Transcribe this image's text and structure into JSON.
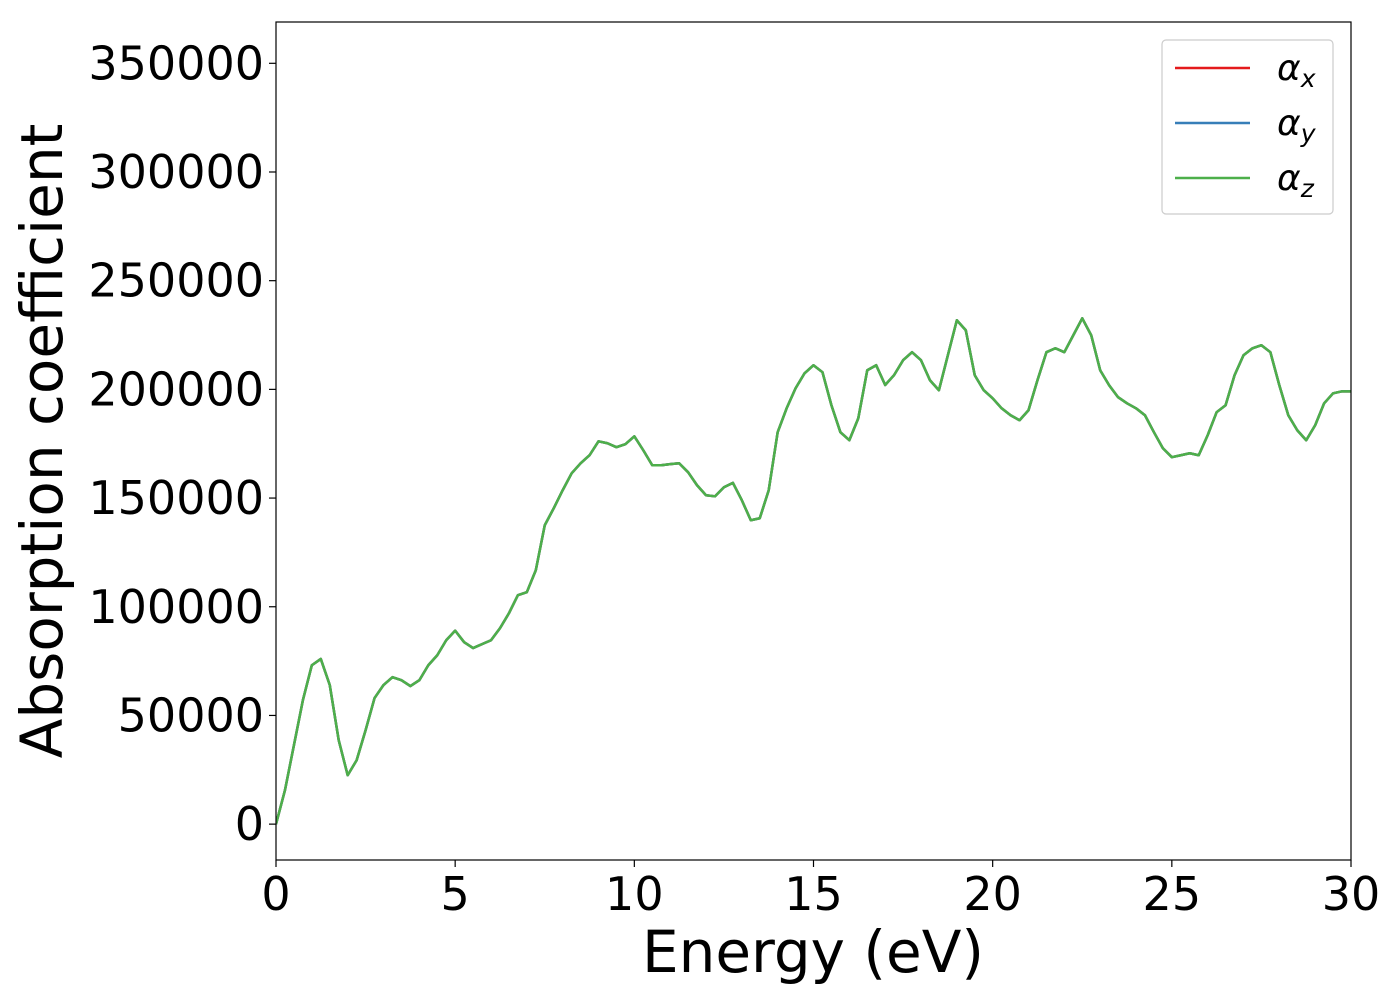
{
  "chart_data": {
    "type": "line",
    "xlabel": "Energy (eV)",
    "ylabel": "Absorption coefficient",
    "x": [
      0,
      0.25,
      0.5,
      0.75,
      1,
      1.25,
      1.5,
      1.75,
      2,
      2.25,
      2.5,
      2.75,
      3,
      3.25,
      3.5,
      3.75,
      4,
      4.25,
      4.5,
      4.75,
      5,
      5.25,
      5.5,
      5.75,
      6,
      6.25,
      6.5,
      6.75,
      7,
      7.25,
      7.5,
      7.75,
      8,
      8.25,
      8.5,
      8.75,
      9,
      9.25,
      9.5,
      9.75,
      10,
      10.25,
      10.5,
      10.75,
      11,
      11.25,
      11.5,
      11.75,
      12,
      12.25,
      12.5,
      12.75,
      13,
      13.25,
      13.5,
      13.75,
      14,
      14.25,
      14.5,
      14.75,
      15,
      15.25,
      15.5,
      15.75,
      16,
      16.25,
      16.5,
      16.75,
      17,
      17.25,
      17.5,
      17.75,
      18,
      18.25,
      18.5,
      18.75,
      19,
      19.25,
      19.5,
      19.75,
      20,
      20.25,
      20.5,
      20.75,
      21,
      21.25,
      21.5,
      21.75,
      22,
      22.25,
      22.5,
      22.75,
      23,
      23.25,
      23.5,
      23.75,
      24,
      24.25,
      24.5,
      24.75,
      25,
      25.25,
      25.5,
      25.75,
      26,
      26.25,
      26.5,
      26.75,
      27,
      27.25,
      27.5,
      27.75,
      28,
      28.25,
      28.5,
      28.75,
      29,
      29.25,
      29.5,
      29.75,
      30
    ],
    "series": [
      {
        "name": "αx",
        "color": "#e41a1c",
        "values": [
          0,
          15600,
          36300,
          57000,
          73100,
          76000,
          64000,
          38600,
          22500,
          29400,
          43200,
          58000,
          64000,
          67600,
          66200,
          63500,
          66200,
          73100,
          77700,
          84600,
          89000,
          83700,
          81000,
          82800,
          84600,
          90100,
          97000,
          105300,
          106700,
          116800,
          137500,
          145300,
          153600,
          161400,
          166000,
          169700,
          176100,
          175200,
          173400,
          174800,
          178400,
          172000,
          165100,
          165100,
          165600,
          166000,
          161900,
          155900,
          151300,
          150800,
          155000,
          157000,
          149000,
          139800,
          140700,
          153600,
          180300,
          191300,
          200500,
          207400,
          211100,
          207900,
          192700,
          180300,
          176600,
          186700,
          208800,
          211100,
          202000,
          206600,
          213400,
          217100,
          213400,
          204200,
          199600,
          215700,
          231800,
          227200,
          206500,
          199600,
          195900,
          191300,
          188100,
          185800,
          190400,
          204200,
          217100,
          218900,
          217100,
          224900,
          232700,
          224900,
          208800,
          201900,
          196400,
          193600,
          191300,
          188100,
          180300,
          172900,
          168800,
          169700,
          170600,
          169700,
          178900,
          189500,
          192700,
          206500,
          215700,
          218900,
          220300,
          217100,
          201900,
          188100,
          181200,
          176600,
          183500,
          193600,
          198200,
          199100,
          199100
        ]
      },
      {
        "name": "αy",
        "color": "#377eb8",
        "values": [
          0,
          15600,
          36300,
          57000,
          73100,
          76000,
          64000,
          38600,
          22500,
          29400,
          43200,
          58000,
          64000,
          67600,
          66200,
          63500,
          66200,
          73100,
          77700,
          84600,
          89000,
          83700,
          81000,
          82800,
          84600,
          90100,
          97000,
          105300,
          106700,
          116800,
          137500,
          145300,
          153600,
          161400,
          166000,
          169700,
          176100,
          175200,
          173400,
          174800,
          178400,
          172000,
          165100,
          165100,
          165600,
          166000,
          161900,
          155900,
          151300,
          150800,
          155000,
          157000,
          149000,
          139800,
          140700,
          153600,
          180300,
          191300,
          200500,
          207400,
          211100,
          207900,
          192700,
          180300,
          176600,
          186700,
          208800,
          211100,
          202000,
          206600,
          213400,
          217100,
          213400,
          204200,
          199600,
          215700,
          231800,
          227200,
          206500,
          199600,
          195900,
          191300,
          188100,
          185800,
          190400,
          204200,
          217100,
          218900,
          217100,
          224900,
          232700,
          224900,
          208800,
          201900,
          196400,
          193600,
          191300,
          188100,
          180300,
          172900,
          168800,
          169700,
          170600,
          169700,
          178900,
          189500,
          192700,
          206500,
          215700,
          218900,
          220300,
          217100,
          201900,
          188100,
          181200,
          176600,
          183500,
          193600,
          198200,
          199100,
          199100
        ]
      },
      {
        "name": "αz",
        "color": "#4daf4a",
        "values": [
          0,
          15600,
          36300,
          57000,
          73100,
          76000,
          64000,
          38600,
          22500,
          29400,
          43200,
          58000,
          64000,
          67600,
          66200,
          63500,
          66200,
          73100,
          77700,
          84600,
          89000,
          83700,
          81000,
          82800,
          84600,
          90100,
          97000,
          105300,
          106700,
          116800,
          137500,
          145300,
          153600,
          161400,
          166000,
          169700,
          176100,
          175200,
          173400,
          174800,
          178400,
          172000,
          165100,
          165100,
          165600,
          166000,
          161900,
          155900,
          151300,
          150800,
          155000,
          157000,
          149000,
          139800,
          140700,
          153600,
          180300,
          191300,
          200500,
          207400,
          211100,
          207900,
          192700,
          180300,
          176600,
          186700,
          208800,
          211100,
          202000,
          206600,
          213400,
          217100,
          213400,
          204200,
          199600,
          215700,
          231800,
          227200,
          206500,
          199600,
          195900,
          191300,
          188100,
          185800,
          190400,
          204200,
          217100,
          218900,
          217100,
          224900,
          232700,
          224900,
          208800,
          201900,
          196400,
          193600,
          191300,
          188100,
          180300,
          172900,
          168800,
          169700,
          170600,
          169700,
          178900,
          189500,
          192700,
          206500,
          215700,
          218900,
          220300,
          217100,
          201900,
          188100,
          181200,
          176600,
          183500,
          193600,
          198200,
          199100,
          199100
        ]
      }
    ],
    "xlim": [
      0,
      30
    ],
    "xticks": [
      0,
      5,
      10,
      15,
      20,
      25,
      30
    ],
    "ylim": [
      -16500,
      369000
    ],
    "yticks": [
      0,
      50000,
      100000,
      150000,
      200000,
      250000,
      300000,
      350000
    ],
    "grid": false,
    "legend": "upper right"
  }
}
